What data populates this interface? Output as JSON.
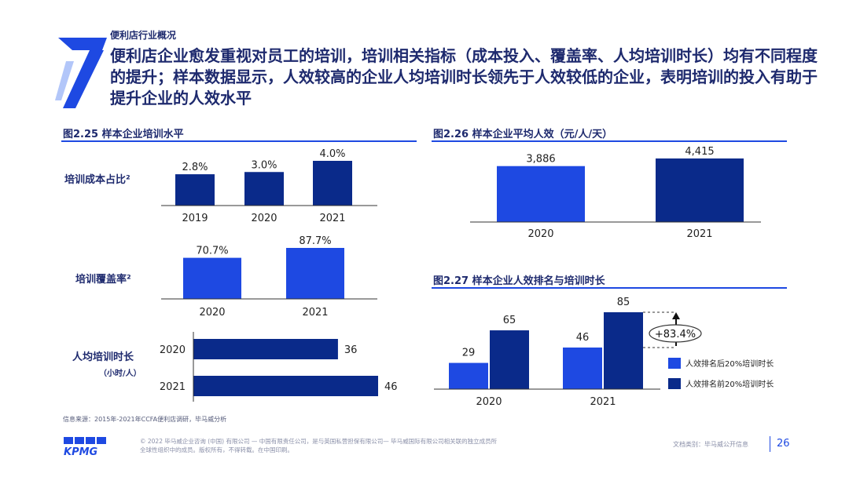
{
  "header": {
    "section_label": "便利店行业概况",
    "big_number": "7",
    "headline": "便利店企业愈发重视对员工的培训，培训相关指标（成本投入、覆盖率、人均培训时长）均有不同程度的提升；样本数据显示，人效较高的企业人均培训时长领先于人效较低的企业，表明培训的投入有助于提升企业的人效水平"
  },
  "panels": {
    "fig225_title": "图2.25 样本企业培训水平",
    "fig226_title": "图2.26 样本企业平均人效（元/人/天）",
    "fig227_title": "图2.27 样本企业人效排名与培训时长"
  },
  "row_labels": {
    "cost": "培训成本占比²",
    "coverage": "培训覆盖率²",
    "hours": "人均培训时长",
    "hours_unit": "（小时/人）"
  },
  "annotation": {
    "growth": "+83.4%"
  },
  "colors": {
    "navy": "#0a2a8a",
    "blue": "#1e49e2",
    "text": "#1e2a6e"
  },
  "chart_data": [
    {
      "id": "cost",
      "type": "bar",
      "title": "培训成本占比²",
      "categories": [
        "2019",
        "2020",
        "2021"
      ],
      "values": [
        2.8,
        3.0,
        4.0
      ],
      "labels": [
        "2.8%",
        "3.0%",
        "4.0%"
      ],
      "ylim": [
        0,
        4.0
      ]
    },
    {
      "id": "coverage",
      "type": "bar",
      "title": "培训覆盖率²",
      "categories": [
        "2020",
        "2021"
      ],
      "values": [
        70.7,
        87.7
      ],
      "labels": [
        "70.7%",
        "87.7%"
      ],
      "ylim": [
        0,
        87.7
      ]
    },
    {
      "id": "hours",
      "type": "bar",
      "orientation": "horizontal",
      "title": "人均培训时长",
      "categories": [
        "2020",
        "2021"
      ],
      "values": [
        36,
        46
      ],
      "labels": [
        "36",
        "46"
      ],
      "xlim": [
        0,
        46
      ]
    },
    {
      "id": "efficiency",
      "type": "bar",
      "title": "图2.26 样本企业平均人效（元/人/天）",
      "categories": [
        "2020",
        "2021"
      ],
      "values": [
        3886,
        4415
      ],
      "labels": [
        "3,886",
        "4,415"
      ],
      "ylim": [
        0,
        4415
      ]
    },
    {
      "id": "ranking",
      "type": "bar",
      "title": "图2.27 样本企业人效排名与培训时长",
      "categories": [
        "2020",
        "2021"
      ],
      "series": [
        {
          "name": "人效排名后20%培训时长",
          "values": [
            29,
            46
          ],
          "color": "#1e49e2"
        },
        {
          "name": "人效排名前20%培训时长",
          "values": [
            65,
            85
          ],
          "color": "#0a2a8a"
        }
      ],
      "ylim": [
        0,
        85
      ],
      "legend": "bottom-right"
    }
  ],
  "footer": {
    "source": "信息来源：2015年-2021年CCFA便利店调研，毕马威分析",
    "logo": "KPMG",
    "copyright": "© 2022 毕马威企业咨询 (中国) 有限公司 — 中国有限责任公司，是与英国私营担保有限公司— 毕马威国际有限公司相关联的独立成员所全球性组织中的成员。版权所有，不得转载。在中国印刷。",
    "doc_class": "文档类别：毕马威公开信息",
    "page": "26"
  }
}
